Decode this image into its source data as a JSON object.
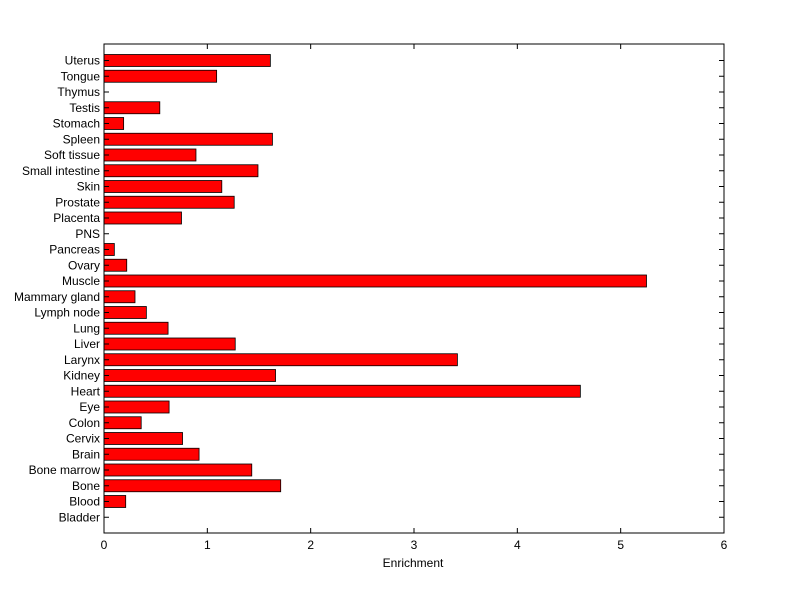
{
  "chart_data": {
    "type": "bar",
    "orientation": "horizontal",
    "xlabel": "Enrichment",
    "ylabel": "",
    "title": "",
    "xlim": [
      0,
      6
    ],
    "xticks": [
      0,
      1,
      2,
      3,
      4,
      5,
      6
    ],
    "categories": [
      "Uterus",
      "Tongue",
      "Thymus",
      "Testis",
      "Stomach",
      "Spleen",
      "Soft tissue",
      "Small intestine",
      "Skin",
      "Prostate",
      "Placenta",
      "PNS",
      "Pancreas",
      "Ovary",
      "Muscle",
      "Mammary gland",
      "Lymph node",
      "Lung",
      "Liver",
      "Larynx",
      "Kidney",
      "Heart",
      "Eye",
      "Colon",
      "Cervix",
      "Brain",
      "Bone marrow",
      "Bone",
      "Blood",
      "Bladder"
    ],
    "values": [
      1.61,
      1.09,
      0,
      0.54,
      0.19,
      1.63,
      0.89,
      1.49,
      1.14,
      1.26,
      0.75,
      0,
      0.1,
      0.22,
      5.25,
      0.3,
      0.41,
      0.62,
      1.27,
      3.42,
      1.66,
      4.61,
      0.63,
      0.36,
      0.76,
      0.92,
      1.43,
      1.71,
      0.21,
      0
    ],
    "bar_color": "#ff0000",
    "grid": false,
    "legend": "none"
  }
}
